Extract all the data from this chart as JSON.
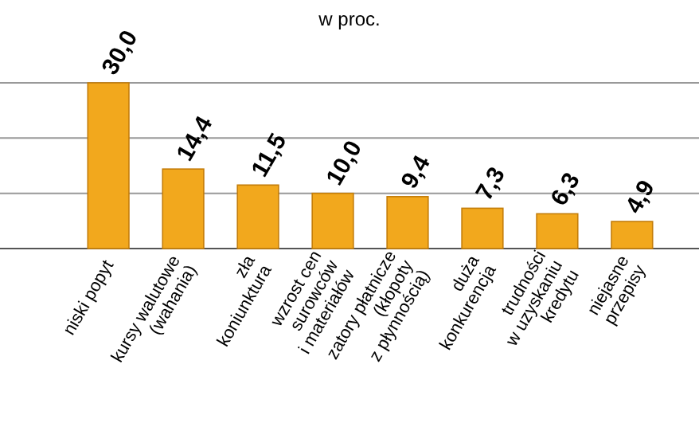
{
  "chart_data": {
    "type": "bar",
    "subtitle": "w proc.",
    "categories": [
      "niski popyt",
      "kursy walutowe\n(wahania)",
      "zła\nkoniunktura",
      "wzrost cen\nsurowców\ni materiałów",
      "zatory płatnicze\n(kłopoty\nz płynnością)",
      "duża\nkonkurencja",
      "trudności\nw uzyskaniu\nkredytu",
      "niejasne\nprzepisy"
    ],
    "values": [
      30.0,
      14.4,
      11.5,
      10.0,
      9.4,
      7.3,
      6.3,
      4.9
    ],
    "value_labels": [
      "30,0",
      "14,4",
      "11,5",
      "10,0",
      "9,4",
      "7,3",
      "6,3",
      "4,9"
    ],
    "color": "#f2a81d",
    "ref_lines": [
      {
        "axis": "y",
        "value": 10,
        "color": "#999999"
      },
      {
        "axis": "y",
        "value": 20,
        "color": "#999999"
      },
      {
        "axis": "y",
        "value": 30,
        "color": "#999999"
      }
    ],
    "tick_labels": "x"
  }
}
